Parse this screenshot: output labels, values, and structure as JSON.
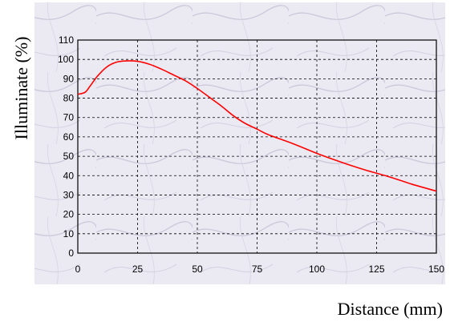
{
  "chart_data": {
    "type": "line",
    "title": "",
    "xlabel": "Distance (mm)",
    "ylabel": "Illuminate (%)",
    "xlim": [
      0,
      150
    ],
    "ylim": [
      0,
      110
    ],
    "x_ticks": [
      0,
      25,
      50,
      75,
      100,
      125,
      150
    ],
    "y_ticks": [
      0,
      10,
      20,
      30,
      40,
      50,
      60,
      70,
      80,
      90,
      100,
      110
    ],
    "grid": true,
    "legend": "none",
    "colors": {
      "line": "#ff0000",
      "grid": "#000000",
      "panel": "#ebe9f2"
    },
    "series": [
      {
        "x": [
          0,
          3,
          5,
          8,
          12,
          16,
          20,
          25,
          30,
          35,
          40,
          45,
          50,
          55,
          60,
          65,
          70,
          75,
          80,
          90,
          100,
          110,
          120,
          130,
          140,
          150
        ],
        "y": [
          82,
          83,
          86,
          91,
          96,
          98.5,
          99.2,
          99,
          97.5,
          95,
          92,
          89,
          85,
          80.5,
          76,
          71,
          67,
          64,
          61,
          56.5,
          51.5,
          47,
          43,
          39.5,
          35.5,
          32
        ]
      }
    ]
  }
}
